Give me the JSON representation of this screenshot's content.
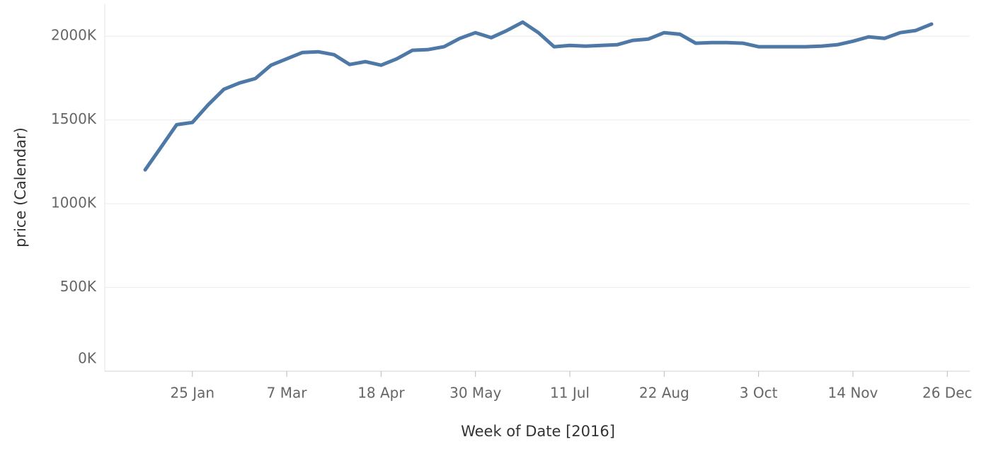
{
  "chart_data": {
    "type": "line",
    "x_label": "Week of Date [2016]",
    "y_label": "price (Calendar)",
    "x": [
      "2016-01-04",
      "2016-01-11",
      "2016-01-18",
      "2016-01-25",
      "2016-02-01",
      "2016-02-08",
      "2016-02-15",
      "2016-02-22",
      "2016-02-29",
      "2016-03-07",
      "2016-03-14",
      "2016-03-21",
      "2016-03-28",
      "2016-04-04",
      "2016-04-11",
      "2016-04-18",
      "2016-04-25",
      "2016-05-02",
      "2016-05-09",
      "2016-05-16",
      "2016-05-23",
      "2016-05-30",
      "2016-06-06",
      "2016-06-13",
      "2016-06-20",
      "2016-06-27",
      "2016-07-04",
      "2016-07-11",
      "2016-07-18",
      "2016-07-25",
      "2016-08-01",
      "2016-08-08",
      "2016-08-15",
      "2016-08-22",
      "2016-08-29",
      "2016-09-05",
      "2016-09-12",
      "2016-09-19",
      "2016-09-26",
      "2016-10-03",
      "2016-10-10",
      "2016-10-17",
      "2016-10-24",
      "2016-10-31",
      "2016-11-07",
      "2016-11-14",
      "2016-11-21",
      "2016-11-28",
      "2016-12-05",
      "2016-12-12",
      "2016-12-19"
    ],
    "series": [
      {
        "name": "price (Calendar)",
        "color": "#4e79a7",
        "values": [
          1202000,
          1337000,
          1472000,
          1485000,
          1590000,
          1683000,
          1721000,
          1747000,
          1827000,
          1865000,
          1903000,
          1907000,
          1890000,
          1831000,
          1848000,
          1827000,
          1865000,
          1916000,
          1920000,
          1937000,
          1987000,
          2021000,
          1991000,
          2034000,
          2084000,
          2021000,
          1937000,
          1945000,
          1941000,
          1945000,
          1949000,
          1975000,
          1983000,
          2021000,
          2012000,
          1958000,
          1962000,
          1962000,
          1958000,
          1937000,
          1937000,
          1937000,
          1937000,
          1941000,
          1949000,
          1970000,
          1996000,
          1987000,
          2021000,
          2034000,
          2072000
        ]
      }
    ],
    "xlim": [
      "2015-12-17",
      "2017-01-05"
    ],
    "xticks": [
      {
        "value": "2016-01-25",
        "label": "25 Jan"
      },
      {
        "value": "2016-03-07",
        "label": "7 Mar"
      },
      {
        "value": "2016-04-18",
        "label": "18 Apr"
      },
      {
        "value": "2016-05-30",
        "label": "30 May"
      },
      {
        "value": "2016-07-11",
        "label": "11 Jul"
      },
      {
        "value": "2016-08-22",
        "label": "22 Aug"
      },
      {
        "value": "2016-10-03",
        "label": "3 Oct"
      },
      {
        "value": "2016-11-14",
        "label": "14 Nov"
      },
      {
        "value": "2016-12-26",
        "label": "26 Dec"
      }
    ],
    "ylim": [
      0,
      2195000
    ],
    "yticks": [
      {
        "value": 0,
        "label": "0K"
      },
      {
        "value": 500000,
        "label": "500K"
      },
      {
        "value": 1000000,
        "label": "1000K"
      },
      {
        "value": 1500000,
        "label": "1500K"
      },
      {
        "value": 2000000,
        "label": "2000K"
      }
    ],
    "grid": true
  }
}
